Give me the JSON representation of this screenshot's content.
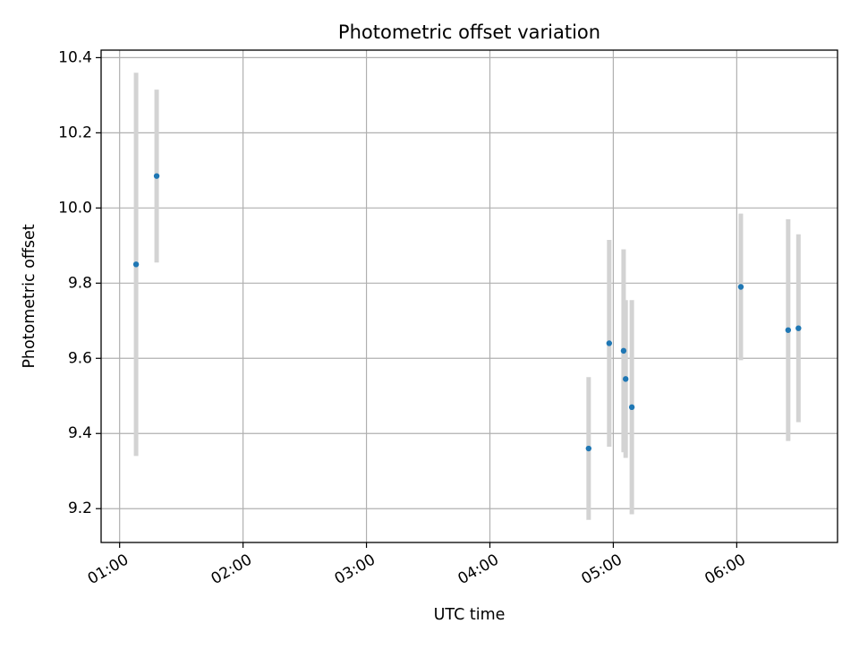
{
  "chart_data": {
    "type": "scatter",
    "title": "Photometric offset variation",
    "xlabel": "UTC time",
    "ylabel": "Photometric offset",
    "x_axis_type": "time",
    "xlim": [
      "00:51",
      "06:49"
    ],
    "ylim": [
      9.11,
      10.42
    ],
    "x_ticks": [
      "01:00",
      "02:00",
      "03:00",
      "04:00",
      "05:00",
      "06:00"
    ],
    "y_ticks": [
      "9.2",
      "9.4",
      "9.6",
      "9.8",
      "10.0",
      "10.2",
      "10.4"
    ],
    "grid": true,
    "legend": "none",
    "colors": {
      "point": "#1f77b4",
      "errorbar": "#d3d3d3",
      "grid": "#b0b0b0"
    },
    "points": [
      {
        "x": "01:08",
        "y": 9.85,
        "y_err": 0.51
      },
      {
        "x": "01:18",
        "y": 10.085,
        "y_err": 0.23
      },
      {
        "x": "04:48",
        "y": 9.36,
        "y_err": 0.19
      },
      {
        "x": "04:58",
        "y": 9.64,
        "y_err": 0.275
      },
      {
        "x": "05:05",
        "y": 9.62,
        "y_err": 0.27
      },
      {
        "x": "05:06",
        "y": 9.545,
        "y_err": 0.21
      },
      {
        "x": "05:09",
        "y": 9.47,
        "y_err": 0.285
      },
      {
        "x": "06:02",
        "y": 9.79,
        "y_err": 0.195
      },
      {
        "x": "06:25",
        "y": 9.675,
        "y_err": 0.295
      },
      {
        "x": "06:30",
        "y": 9.68,
        "y_err": 0.25
      }
    ]
  }
}
